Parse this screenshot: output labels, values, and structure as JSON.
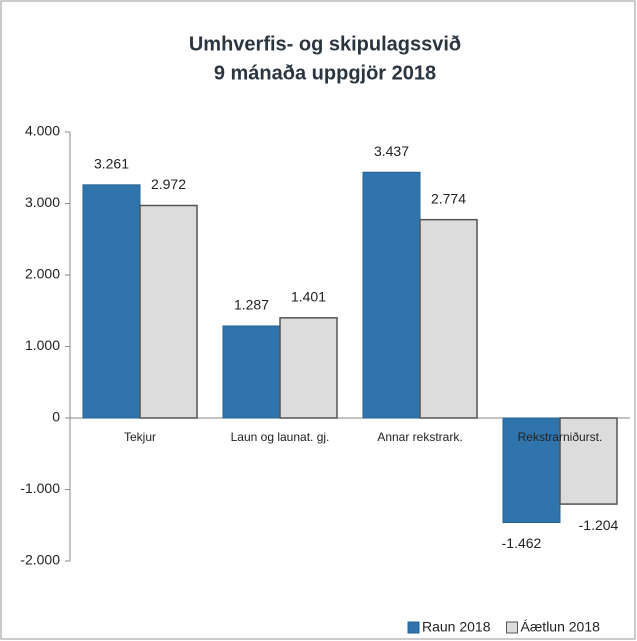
{
  "chart_data": {
    "type": "bar",
    "title": "Umhverfis- og skipulagssvið",
    "subtitle": "9 mánaða uppgjör 2018",
    "categories": [
      "Tekjur",
      "Laun og launat. gj.",
      "Annar rekstrark.",
      "Rekstrarniðurst."
    ],
    "series": [
      {
        "name": "Raun 2018",
        "color": "#2f74ad",
        "values": [
          3261,
          1287,
          3437,
          -1462
        ],
        "value_labels": [
          "3.261",
          "1.287",
          "3.437",
          "-1.462"
        ]
      },
      {
        "name": "Áætlun 2018",
        "color": "#dcdcdc",
        "values": [
          2972,
          1401,
          2774,
          -1204
        ],
        "value_labels": [
          "2.972",
          "1.401",
          "2.774",
          "-1.204"
        ]
      }
    ],
    "ylim": [
      -2000,
      4000
    ],
    "yticks": [
      {
        "value": -2000,
        "label": "-2.000"
      },
      {
        "value": -1000,
        "label": "-1.000"
      },
      0,
      {
        "value": 1000,
        "label": "1.000"
      },
      {
        "value": 2000,
        "label": "2.000"
      },
      {
        "value": 3000,
        "label": "3.000"
      },
      {
        "value": 4000,
        "label": "4.000"
      }
    ],
    "grid": false,
    "legend": "bottom-right"
  }
}
